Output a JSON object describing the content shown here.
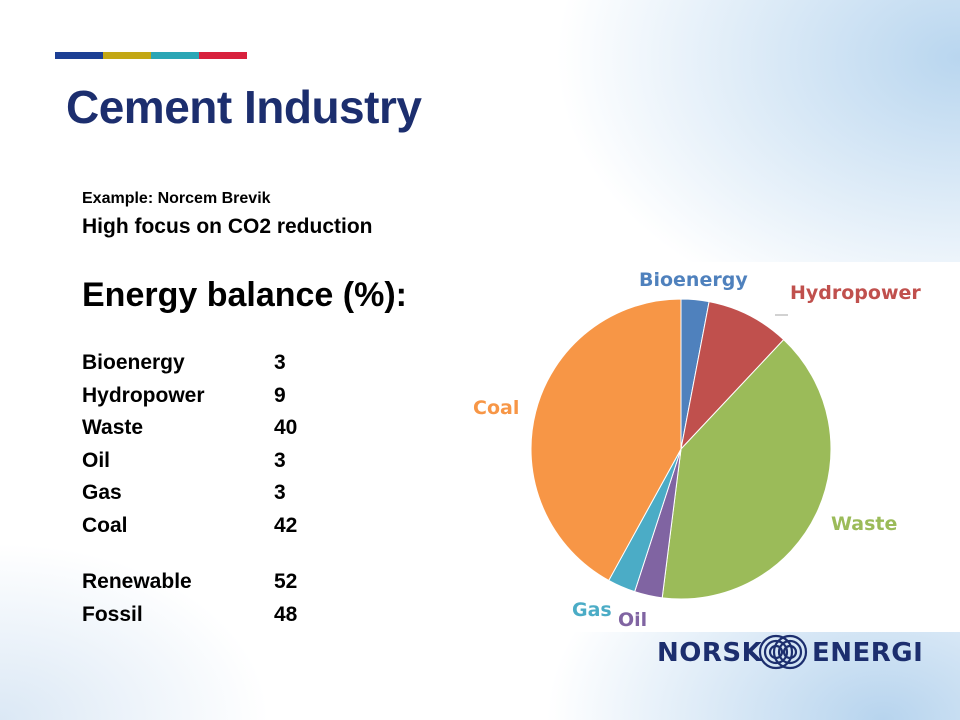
{
  "slide": {
    "title": "Cement Industry",
    "example": "Example: Norcem Brevik",
    "focus": "High focus on CO2 reduction",
    "heading": "Energy balance (%):",
    "accent_colors": [
      "#1c3f94",
      "#c3a714",
      "#2aa6b5",
      "#d8213d"
    ]
  },
  "energy_table": [
    {
      "label": "Bioenergy",
      "value": "3"
    },
    {
      "label": "Hydropower",
      "value": "9"
    },
    {
      "label": "Waste",
      "value": "40"
    },
    {
      "label": "Oil",
      "value": "3"
    },
    {
      "label": "Gas",
      "value": "3"
    },
    {
      "label": "Coal",
      "value": "42"
    }
  ],
  "summary_table": [
    {
      "label": "Renewable",
      "value": "52"
    },
    {
      "label": "Fossil",
      "value": "48"
    }
  ],
  "chart_data": {
    "type": "pie",
    "slices": [
      {
        "label": "Bioenergy",
        "value": 3,
        "color": "#4f81bd"
      },
      {
        "label": "Hydropower",
        "value": 9,
        "color": "#c0504d"
      },
      {
        "label": "Waste",
        "value": 40,
        "color": "#9bbb59"
      },
      {
        "label": "Oil",
        "value": 3,
        "color": "#8064a2"
      },
      {
        "label": "Gas",
        "value": 3,
        "color": "#4bacc6"
      },
      {
        "label": "Coal",
        "value": 42,
        "color": "#f79646"
      }
    ],
    "start": "12 o'clock, clockwise"
  },
  "logo": {
    "left_text": "NORSK",
    "right_text": "ENERGI",
    "color": "#1c2e6e"
  }
}
